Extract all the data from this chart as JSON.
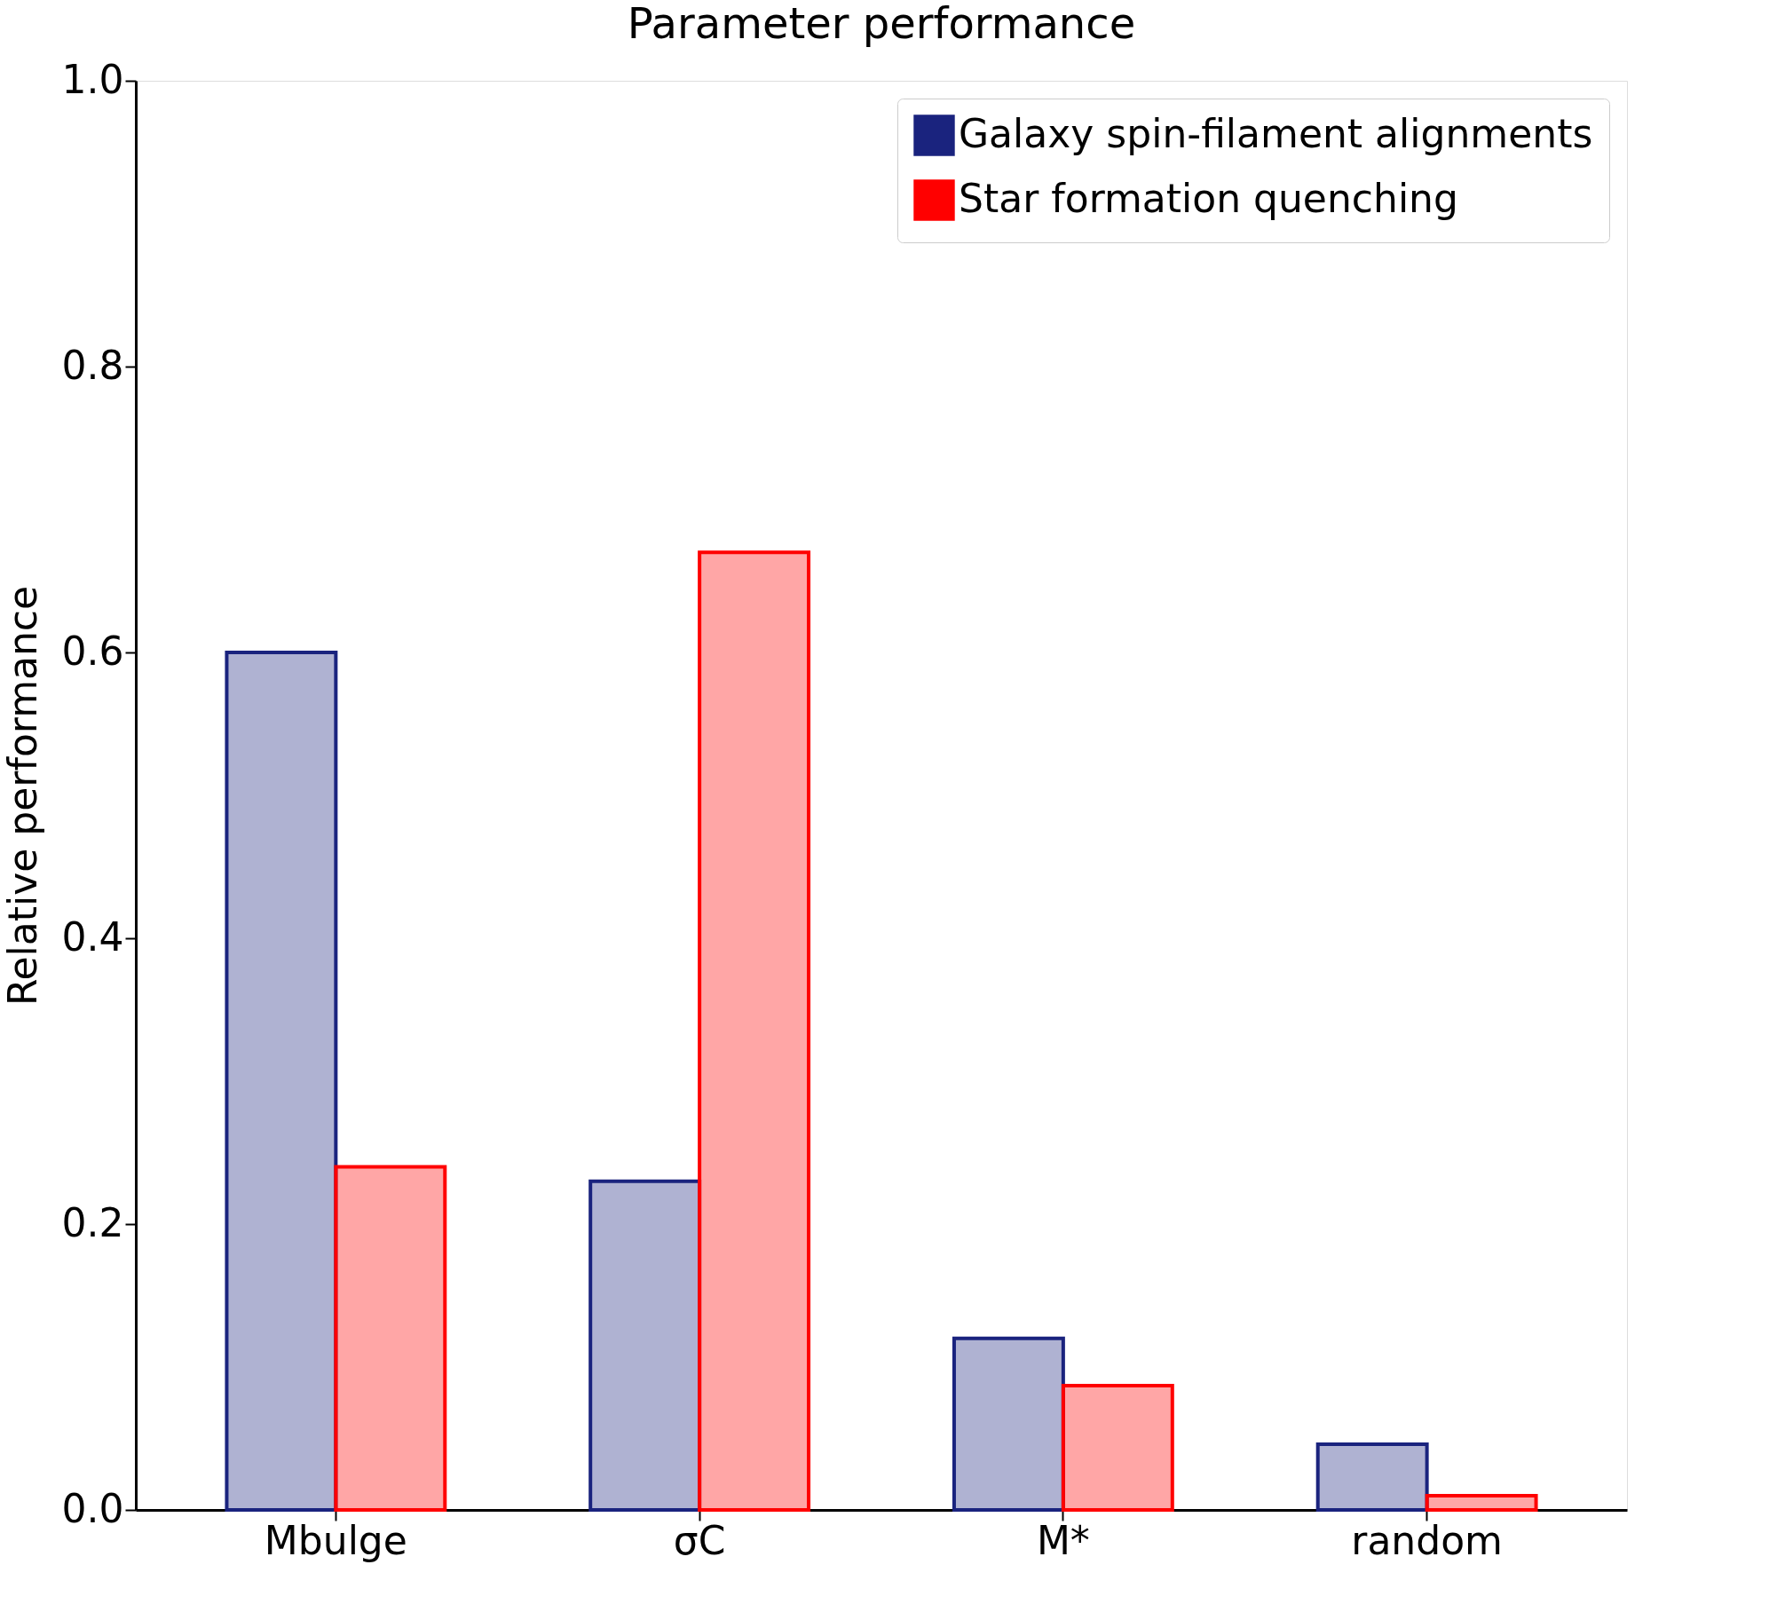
{
  "chart_data": {
    "type": "bar",
    "title": "Parameter performance",
    "ylabel": "Relative performance",
    "categories": [
      "Mbulge",
      "σC",
      "M*",
      "random"
    ],
    "series": [
      {
        "name": "Galaxy spin-filament alignments",
        "color": "#1a237e",
        "values": [
          0.6,
          0.23,
          0.12,
          0.046
        ]
      },
      {
        "name": "Star formation quenching",
        "color": "#ff0000",
        "values": [
          0.24,
          0.67,
          0.087,
          0.01
        ]
      }
    ],
    "ylim": [
      0,
      1
    ],
    "yticks": [
      {
        "value": 0,
        "label": "0.0"
      },
      {
        "value": 0.2,
        "label": "0.2"
      },
      {
        "value": 0.4,
        "label": "0.4"
      },
      {
        "value": 0.6,
        "label": "0.6"
      },
      {
        "value": 0.8,
        "label": "0.8"
      },
      {
        "value": 1,
        "label": "1.0"
      }
    ],
    "grid": false,
    "legend": "top right"
  }
}
